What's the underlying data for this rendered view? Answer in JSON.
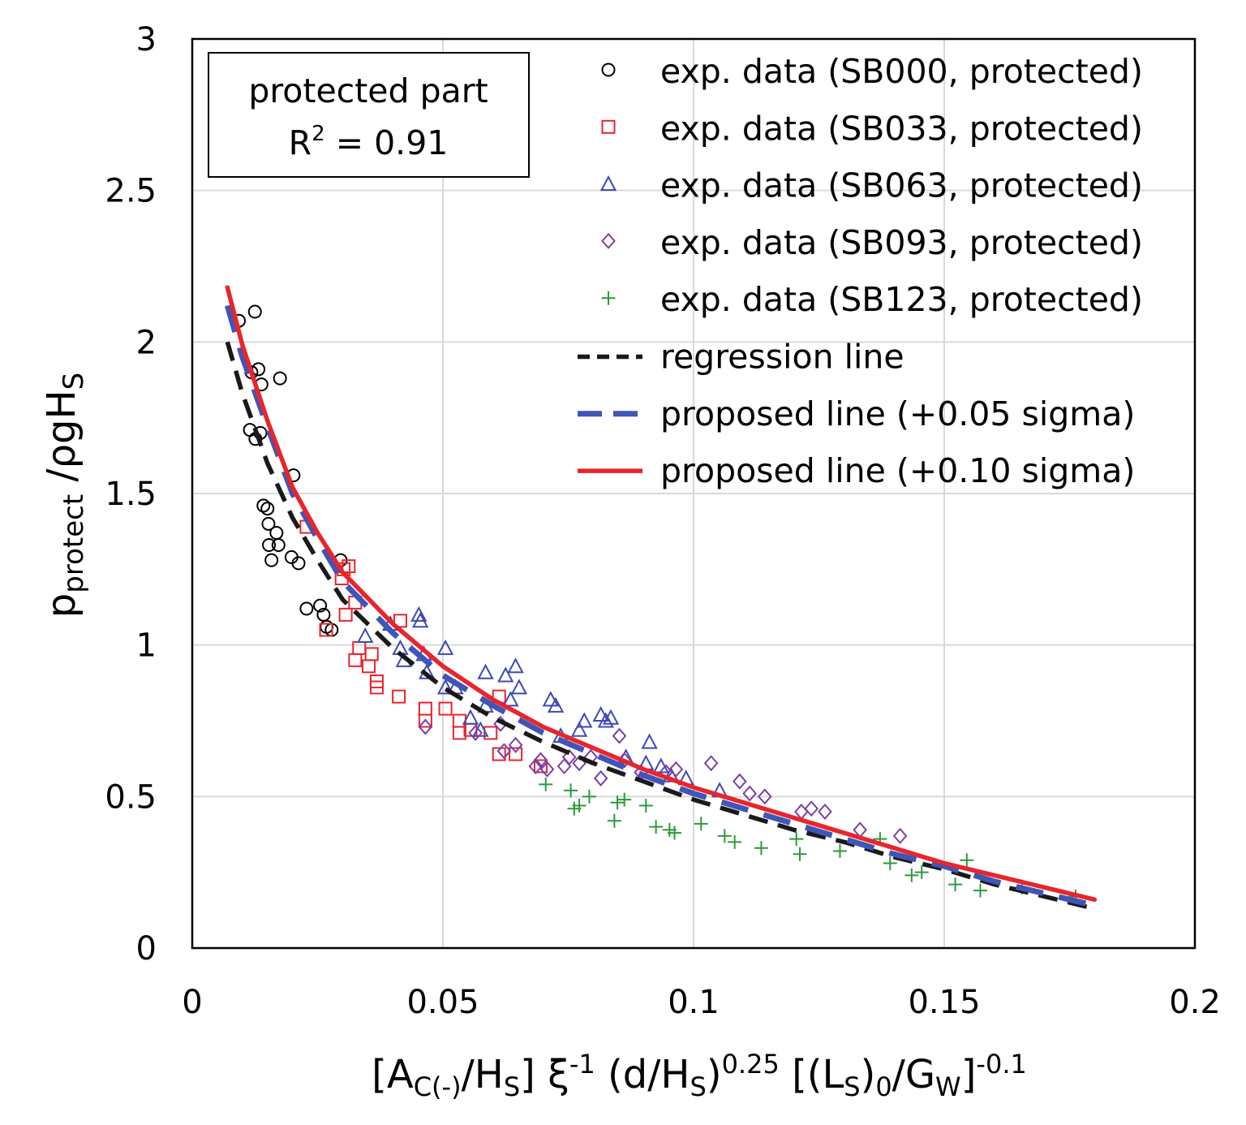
{
  "chart_data": {
    "type": "scatter",
    "title": "",
    "xlabel": {
      "parts": [
        "[A",
        "C(-)",
        "/H",
        "S",
        "] ξ",
        "-1",
        " (d/H",
        "S",
        ")",
        "0.25",
        " [(L",
        "S",
        ")",
        "0",
        "/G",
        "W",
        "]",
        "-0.1"
      ]
    },
    "ylabel": {
      "parts": [
        "p",
        "protect",
        " /ρgH",
        "S"
      ]
    },
    "xlim": [
      0,
      0.2
    ],
    "ylim": [
      0,
      3
    ],
    "x_ticks": [
      "0",
      "0.05",
      "0.1",
      "0.15",
      "0.2"
    ],
    "y_ticks": [
      "0",
      "0.5",
      "1",
      "1.5",
      "2",
      "2.5",
      "3"
    ],
    "grid": true,
    "annotation": {
      "line1": "protected part",
      "r2_label": "R",
      "r2_sup": "2",
      "r2_value": " = 0.91"
    },
    "legend_position": "top-right",
    "series": [
      {
        "name": "exp. data (SB000, protected)",
        "marker": "circle",
        "color": "#000000",
        "points": [
          [
            0.0093,
            2.07
          ],
          [
            0.0125,
            2.1
          ],
          [
            0.0118,
            1.9
          ],
          [
            0.0132,
            1.91
          ],
          [
            0.0138,
            1.86
          ],
          [
            0.0175,
            1.88
          ],
          [
            0.0115,
            1.71
          ],
          [
            0.0126,
            1.68
          ],
          [
            0.0136,
            1.7
          ],
          [
            0.0202,
            1.56
          ],
          [
            0.0142,
            1.46
          ],
          [
            0.015,
            1.45
          ],
          [
            0.0152,
            1.4
          ],
          [
            0.0168,
            1.37
          ],
          [
            0.0153,
            1.33
          ],
          [
            0.0172,
            1.33
          ],
          [
            0.0158,
            1.28
          ],
          [
            0.0198,
            1.29
          ],
          [
            0.0212,
            1.27
          ],
          [
            0.0296,
            1.28
          ],
          [
            0.0228,
            1.12
          ],
          [
            0.0255,
            1.13
          ],
          [
            0.0262,
            1.1
          ],
          [
            0.0268,
            1.06
          ],
          [
            0.0278,
            1.05
          ]
        ]
      },
      {
        "name": "exp. data (SB033, protected)",
        "marker": "square",
        "color": "#e8252b",
        "points": [
          [
            0.0228,
            1.39
          ],
          [
            0.0302,
            1.25
          ],
          [
            0.0298,
            1.22
          ],
          [
            0.0306,
            1.1
          ],
          [
            0.0312,
            1.26
          ],
          [
            0.0325,
            1.14
          ],
          [
            0.0267,
            1.05
          ],
          [
            0.0325,
            0.95
          ],
          [
            0.0333,
            0.99
          ],
          [
            0.0352,
            0.93
          ],
          [
            0.0358,
            0.97
          ],
          [
            0.0368,
            0.88
          ],
          [
            0.0368,
            0.86
          ],
          [
            0.0415,
            1.08
          ],
          [
            0.0412,
            0.83
          ],
          [
            0.0465,
            0.79
          ],
          [
            0.0465,
            0.75
          ],
          [
            0.0505,
            0.79
          ],
          [
            0.0533,
            0.75
          ],
          [
            0.0533,
            0.71
          ],
          [
            0.0555,
            0.72
          ],
          [
            0.0595,
            0.71
          ],
          [
            0.0612,
            0.83
          ],
          [
            0.0612,
            0.64
          ],
          [
            0.0645,
            0.64
          ],
          [
            0.0695,
            0.6
          ]
        ]
      },
      {
        "name": "exp. data (SB063, protected)",
        "marker": "triangle",
        "color": "#3f48b5",
        "points": [
          [
            0.0345,
            1.03
          ],
          [
            0.0395,
            1.07
          ],
          [
            0.0415,
            0.99
          ],
          [
            0.0422,
            0.95
          ],
          [
            0.0452,
            1.1
          ],
          [
            0.0455,
            1.08
          ],
          [
            0.0462,
            0.97
          ],
          [
            0.0468,
            0.91
          ],
          [
            0.0505,
            0.99
          ],
          [
            0.0505,
            0.86
          ],
          [
            0.0525,
            0.86
          ],
          [
            0.0555,
            0.76
          ],
          [
            0.0575,
            0.72
          ],
          [
            0.0585,
            0.91
          ],
          [
            0.0585,
            0.8
          ],
          [
            0.0625,
            0.9
          ],
          [
            0.0635,
            0.82
          ],
          [
            0.0645,
            0.93
          ],
          [
            0.0652,
            0.86
          ],
          [
            0.0715,
            0.82
          ],
          [
            0.0725,
            0.8
          ],
          [
            0.0735,
            0.7
          ],
          [
            0.0772,
            0.72
          ],
          [
            0.0782,
            0.75
          ],
          [
            0.0815,
            0.77
          ],
          [
            0.0825,
            0.75
          ],
          [
            0.0835,
            0.76
          ],
          [
            0.0865,
            0.63
          ],
          [
            0.0905,
            0.61
          ],
          [
            0.0912,
            0.68
          ],
          [
            0.0935,
            0.6
          ],
          [
            0.0955,
            0.57
          ],
          [
            0.0985,
            0.56
          ],
          [
            0.1052,
            0.52
          ]
        ]
      },
      {
        "name": "exp. data (SB093, protected)",
        "marker": "diamond",
        "color": "#7b3fa6",
        "points": [
          [
            0.0465,
            0.73
          ],
          [
            0.0565,
            0.71
          ],
          [
            0.0615,
            0.74
          ],
          [
            0.0622,
            0.65
          ],
          [
            0.0645,
            0.67
          ],
          [
            0.0685,
            0.6
          ],
          [
            0.0695,
            0.62
          ],
          [
            0.0708,
            0.59
          ],
          [
            0.0742,
            0.6
          ],
          [
            0.0752,
            0.63
          ],
          [
            0.0772,
            0.61
          ],
          [
            0.0795,
            0.63
          ],
          [
            0.0815,
            0.56
          ],
          [
            0.0852,
            0.7
          ],
          [
            0.0862,
            0.62
          ],
          [
            0.0895,
            0.58
          ],
          [
            0.0945,
            0.58
          ],
          [
            0.0965,
            0.59
          ],
          [
            0.1035,
            0.61
          ],
          [
            0.1092,
            0.55
          ],
          [
            0.1112,
            0.51
          ],
          [
            0.1142,
            0.5
          ],
          [
            0.1215,
            0.45
          ],
          [
            0.1235,
            0.46
          ],
          [
            0.1262,
            0.45
          ],
          [
            0.1332,
            0.39
          ],
          [
            0.1412,
            0.37
          ]
        ]
      },
      {
        "name": "exp. data (SB123, protected)",
        "marker": "plus",
        "color": "#2c9a3a",
        "points": [
          [
            0.0705,
            0.54
          ],
          [
            0.0755,
            0.52
          ],
          [
            0.0762,
            0.46
          ],
          [
            0.0772,
            0.47
          ],
          [
            0.0792,
            0.5
          ],
          [
            0.0842,
            0.42
          ],
          [
            0.0848,
            0.48
          ],
          [
            0.0862,
            0.49
          ],
          [
            0.0905,
            0.47
          ],
          [
            0.0925,
            0.4
          ],
          [
            0.0952,
            0.39
          ],
          [
            0.0962,
            0.38
          ],
          [
            0.1015,
            0.41
          ],
          [
            0.1062,
            0.37
          ],
          [
            0.1082,
            0.35
          ],
          [
            0.1135,
            0.33
          ],
          [
            0.1205,
            0.36
          ],
          [
            0.1212,
            0.31
          ],
          [
            0.1292,
            0.32
          ],
          [
            0.1372,
            0.36
          ],
          [
            0.1392,
            0.28
          ],
          [
            0.1435,
            0.24
          ],
          [
            0.1455,
            0.25
          ],
          [
            0.1522,
            0.21
          ],
          [
            0.1545,
            0.29
          ],
          [
            0.1572,
            0.19
          ],
          [
            0.1655,
            0.2
          ],
          [
            0.1762,
            0.17
          ]
        ]
      },
      {
        "name": "regression line",
        "type": "line",
        "style": "dashed",
        "color": "#1a1a1a",
        "points": [
          [
            0.007,
            2.0
          ],
          [
            0.01,
            1.83
          ],
          [
            0.015,
            1.6
          ],
          [
            0.02,
            1.42
          ],
          [
            0.025,
            1.28
          ],
          [
            0.03,
            1.15
          ],
          [
            0.04,
            0.99
          ],
          [
            0.05,
            0.86
          ],
          [
            0.06,
            0.76
          ],
          [
            0.07,
            0.68
          ],
          [
            0.08,
            0.61
          ],
          [
            0.09,
            0.55
          ],
          [
            0.1,
            0.49
          ],
          [
            0.11,
            0.44
          ],
          [
            0.12,
            0.39
          ],
          [
            0.13,
            0.35
          ],
          [
            0.14,
            0.3
          ],
          [
            0.15,
            0.26
          ],
          [
            0.16,
            0.21
          ],
          [
            0.17,
            0.17
          ],
          [
            0.18,
            0.13
          ]
        ]
      },
      {
        "name": "proposed line (+0.05 sigma)",
        "type": "line",
        "style": "dashed",
        "color": "#3f55b8",
        "points": [
          [
            0.007,
            2.12
          ],
          [
            0.01,
            1.95
          ],
          [
            0.015,
            1.72
          ],
          [
            0.02,
            1.5
          ],
          [
            0.025,
            1.35
          ],
          [
            0.03,
            1.21
          ],
          [
            0.04,
            1.04
          ],
          [
            0.05,
            0.9
          ],
          [
            0.06,
            0.8
          ],
          [
            0.07,
            0.71
          ],
          [
            0.08,
            0.64
          ],
          [
            0.09,
            0.57
          ],
          [
            0.1,
            0.51
          ],
          [
            0.11,
            0.46
          ],
          [
            0.12,
            0.41
          ],
          [
            0.13,
            0.36
          ],
          [
            0.14,
            0.31
          ],
          [
            0.15,
            0.27
          ],
          [
            0.16,
            0.22
          ],
          [
            0.17,
            0.18
          ],
          [
            0.18,
            0.14
          ]
        ]
      },
      {
        "name": "proposed line (+0.10 sigma)",
        "type": "line",
        "style": "solid",
        "color": "#e8252b",
        "points": [
          [
            0.007,
            2.18
          ],
          [
            0.01,
            1.99
          ],
          [
            0.015,
            1.74
          ],
          [
            0.02,
            1.52
          ],
          [
            0.025,
            1.37
          ],
          [
            0.03,
            1.24
          ],
          [
            0.04,
            1.07
          ],
          [
            0.05,
            0.93
          ],
          [
            0.06,
            0.82
          ],
          [
            0.07,
            0.73
          ],
          [
            0.08,
            0.66
          ],
          [
            0.09,
            0.59
          ],
          [
            0.1,
            0.53
          ],
          [
            0.11,
            0.48
          ],
          [
            0.12,
            0.43
          ],
          [
            0.13,
            0.38
          ],
          [
            0.14,
            0.33
          ],
          [
            0.15,
            0.28
          ],
          [
            0.16,
            0.24
          ],
          [
            0.17,
            0.2
          ],
          [
            0.18,
            0.16
          ]
        ]
      }
    ]
  }
}
